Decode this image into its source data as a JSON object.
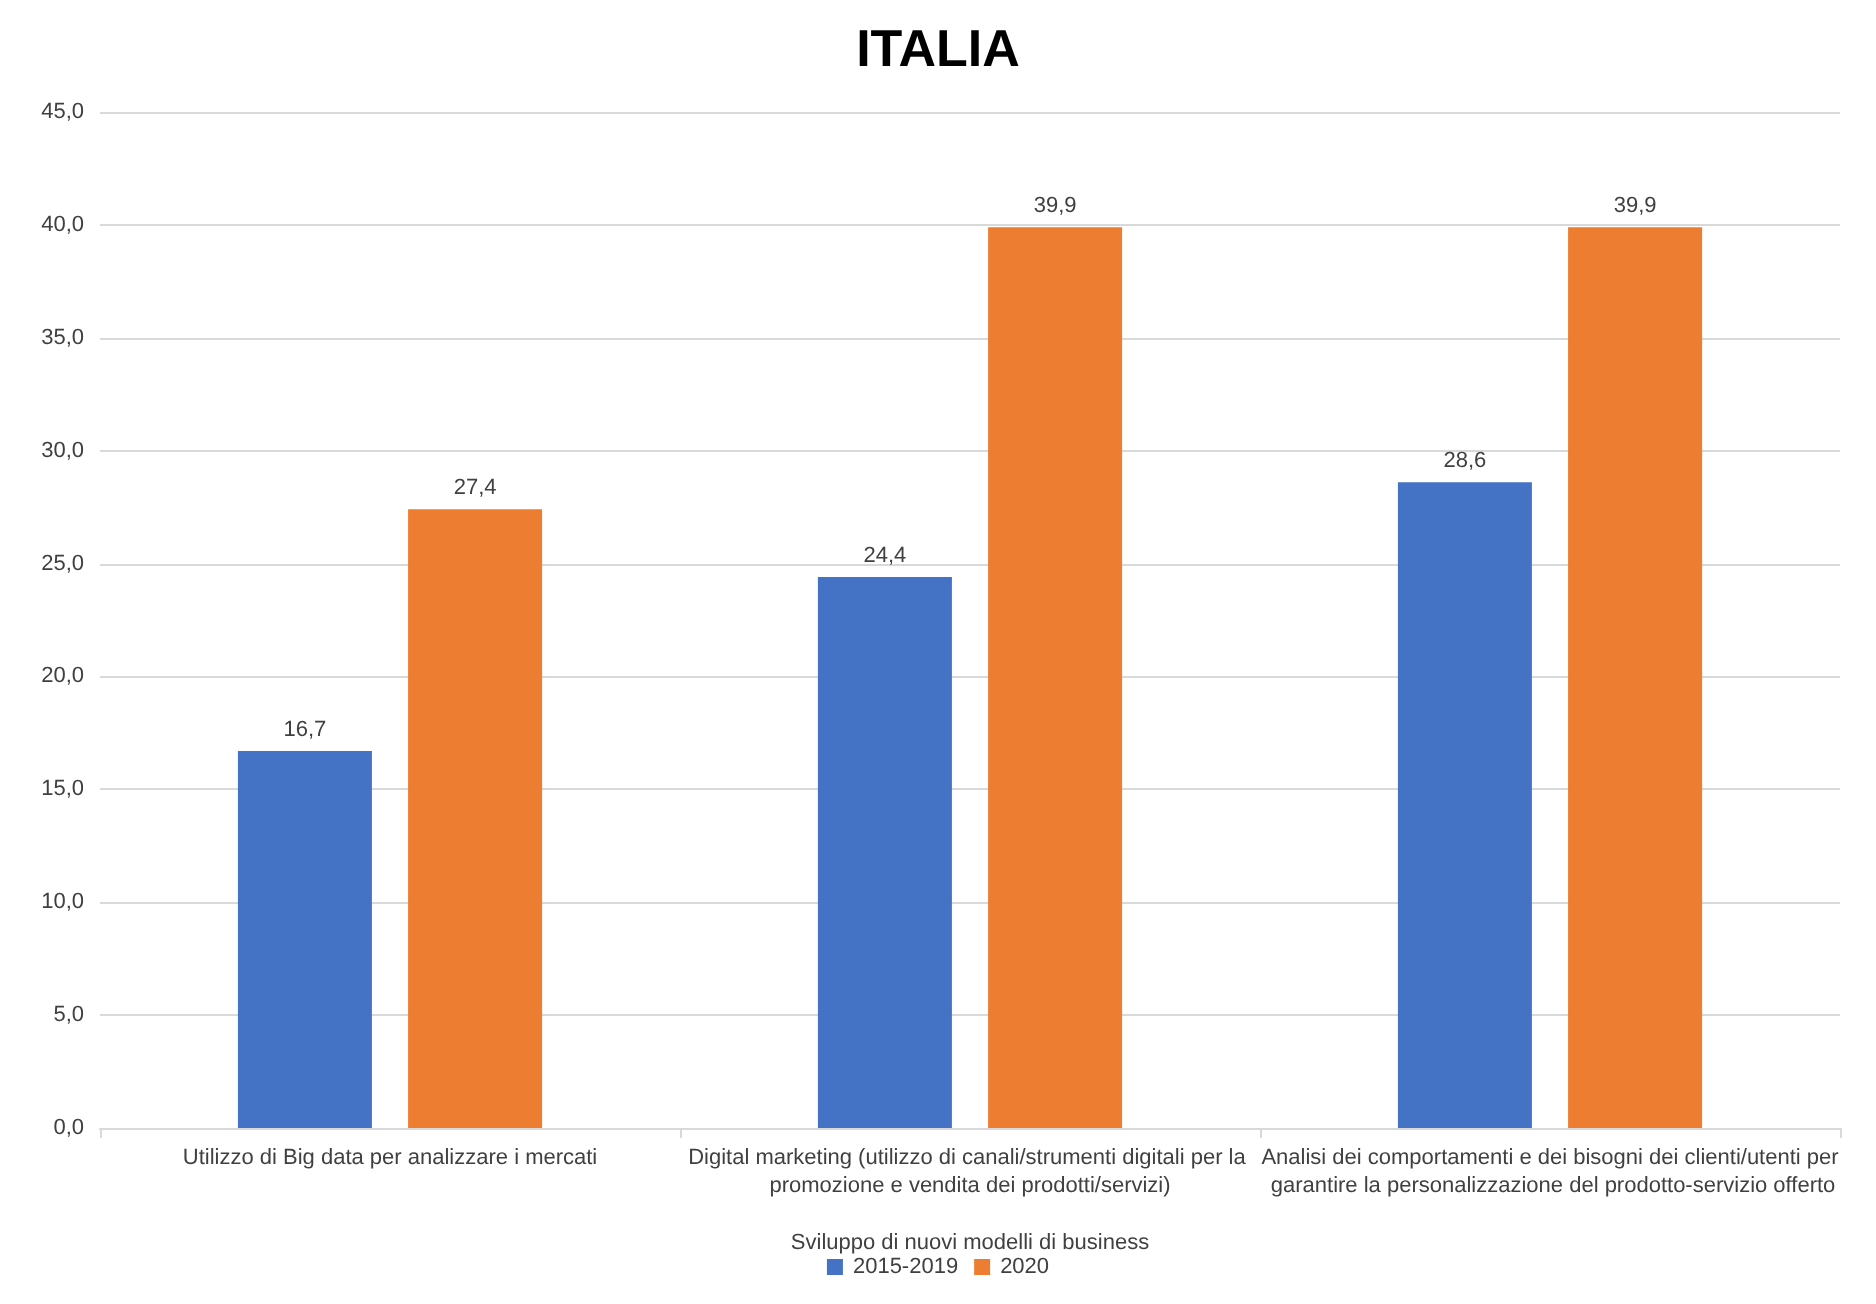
{
  "chart_data": {
    "type": "bar",
    "title": "ITALIA",
    "xlabel": "Sviluppo di nuovi modelli di business",
    "categories": [
      "Utilizzo di Big data per analizzare i mercati",
      "Digital marketing (utilizzo di canali/strumenti digitali per la promozione e vendita dei prodotti/servizi)",
      "Analisi dei comportamenti e dei bisogni dei clienti/utenti per garantire la personalizzazione del prodotto-servizio offerto"
    ],
    "series": [
      {
        "name": "2015-2019",
        "color": "#4472c4",
        "values": [
          16.7,
          24.4,
          28.6
        ],
        "value_labels": [
          "16,7",
          "24,4",
          "28,6"
        ]
      },
      {
        "name": "2020",
        "color": "#ed7d31",
        "values": [
          27.4,
          39.9,
          39.9
        ],
        "value_labels": [
          "27,4",
          "39,9",
          "39,9"
        ]
      }
    ],
    "ylim": [
      0,
      45
    ],
    "yticks": [
      {
        "value": 0,
        "label": "0,0"
      },
      {
        "value": 5,
        "label": "5,0"
      },
      {
        "value": 10,
        "label": "10,0"
      },
      {
        "value": 15,
        "label": "15,0"
      },
      {
        "value": 20,
        "label": "20,0"
      },
      {
        "value": 25,
        "label": "25,0"
      },
      {
        "value": 30,
        "label": "30,0"
      },
      {
        "value": 35,
        "label": "35,0"
      },
      {
        "value": 40,
        "label": "40,0"
      },
      {
        "value": 45,
        "label": "45,0"
      }
    ],
    "grid": "y",
    "legend": "bottom"
  }
}
